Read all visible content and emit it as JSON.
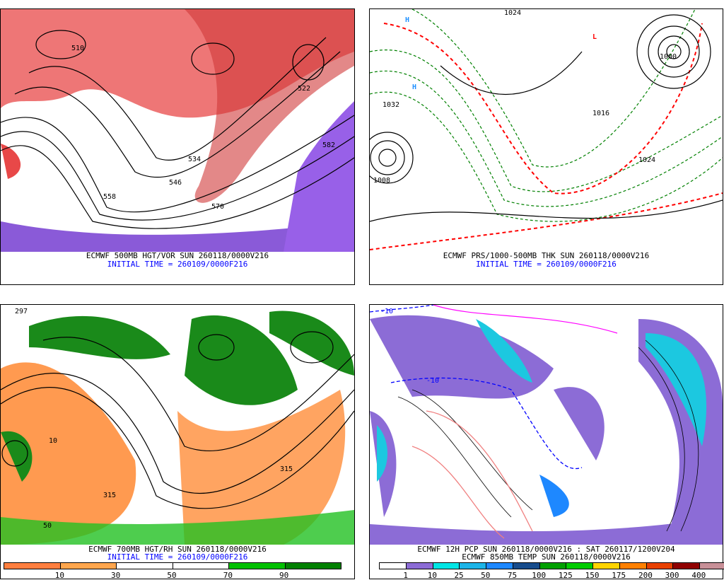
{
  "panels": [
    {
      "title": "ECMWF 500MB HGT/VOR SUN 260118/0000V216",
      "subtitle": "INITIAL TIME = 260109/0000F216",
      "contour_labels": [
        "510",
        "534",
        "546",
        "558",
        "570",
        "582",
        "522"
      ]
    },
    {
      "title": "ECMWF PRS/1000-500MB THK SUN 260118/0000V216",
      "subtitle": "INITIAL TIME = 260109/0000F216",
      "contour_labels": [
        "1024",
        "1000",
        "1032",
        "1016",
        "1008",
        "1024"
      ],
      "markers": [
        "H",
        "L",
        "H"
      ]
    },
    {
      "title": "ECMWF 700MB HGT/RH SUN 260118/0000V216",
      "subtitle": "INITIAL TIME = 260109/0000F216",
      "contour_labels": [
        "297",
        "315",
        "10",
        "50",
        "315"
      ],
      "colorbar": {
        "colors": [
          "#ff7f3f",
          "#ffa64d",
          "#ffffff",
          "#ffffff",
          "#00c000",
          "#008000"
        ],
        "ticks": [
          "10",
          "30",
          "50",
          "70",
          "90"
        ]
      }
    },
    {
      "title": "ECMWF 12H PCP SUN 260118/0000V216 : SAT 260117/1200V204",
      "subtitle": "ECMWF 850MB TEMP SUN 260118/0000V216",
      "contour_labels": [
        "-10",
        "-10"
      ],
      "colorbar": {
        "colors": [
          "#ffffff",
          "#8c6cd6",
          "#00e5e5",
          "#1cb4e8",
          "#1e88ff",
          "#174c8c",
          "#00a000",
          "#00cc00",
          "#ffd400",
          "#ff8000",
          "#e84000",
          "#900000",
          "#c89098"
        ],
        "ticks": [
          "1",
          "10",
          "25",
          "50",
          "75",
          "100",
          "125",
          "150",
          "175",
          "200",
          "300",
          "400"
        ]
      }
    }
  ]
}
